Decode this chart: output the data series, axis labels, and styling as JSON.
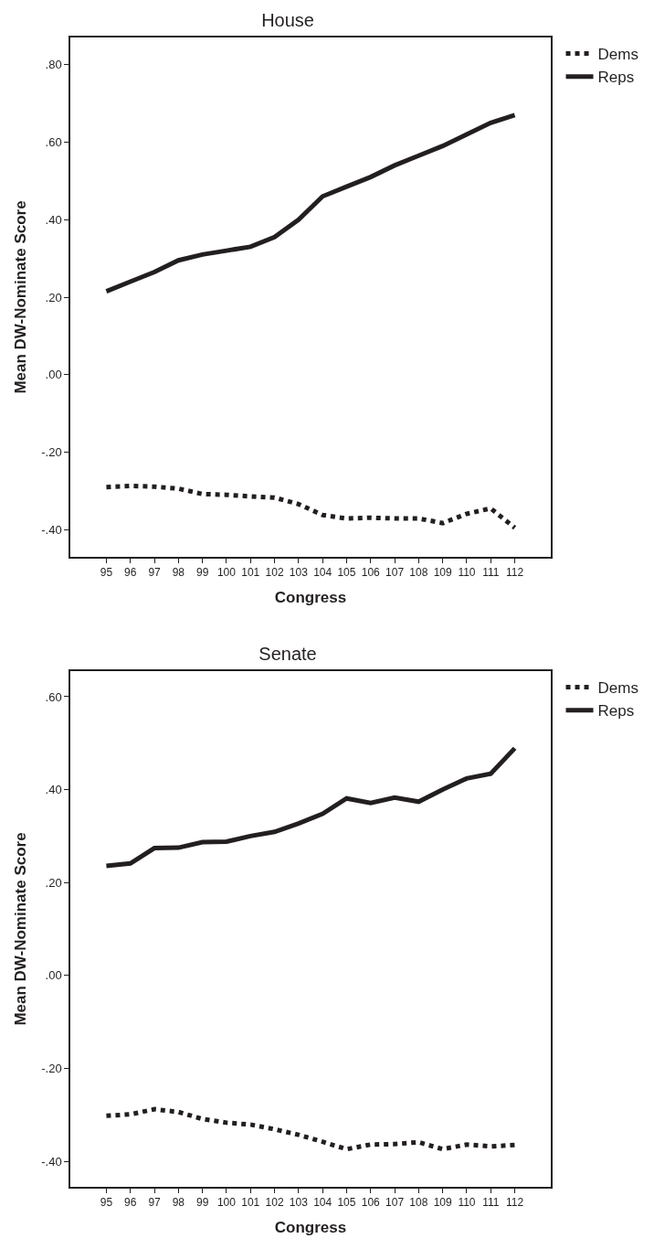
{
  "chart_data": [
    {
      "type": "line",
      "title": "House",
      "xlabel": "Congress",
      "ylabel": "Mean DW-Nominate Score",
      "categories": [
        "95",
        "96",
        "97",
        "98",
        "99",
        "100",
        "101",
        "102",
        "103",
        "104",
        "105",
        "106",
        "107",
        "108",
        "109",
        "110",
        "111",
        "112"
      ],
      "series": [
        {
          "name": "Dems",
          "color": "#231f20",
          "line_style": "dotted",
          "values": [
            -0.29,
            -0.287,
            -0.289,
            -0.294,
            -0.308,
            -0.31,
            -0.314,
            -0.317,
            -0.334,
            -0.362,
            -0.371,
            -0.369,
            -0.371,
            -0.371,
            -0.383,
            -0.359,
            -0.345,
            -0.395
          ]
        },
        {
          "name": "Reps",
          "color": "#231f20",
          "line_style": "solid",
          "values": [
            0.215,
            0.24,
            0.265,
            0.295,
            0.31,
            0.32,
            0.33,
            0.355,
            0.4,
            0.46,
            0.485,
            0.51,
            0.54,
            0.565,
            0.59,
            0.62,
            0.65,
            0.67
          ]
        }
      ],
      "ylim": [
        -0.47,
        0.87
      ],
      "yticks": [
        {
          "value": -0.4,
          "label": "-.40"
        },
        {
          "value": -0.2,
          "label": "-.20"
        },
        {
          "value": 0,
          "label": ".00"
        },
        {
          "value": 0.2,
          "label": ".20"
        },
        {
          "value": 0.4,
          "label": ".40"
        },
        {
          "value": 0.6,
          "label": ".60"
        },
        {
          "value": 0.8,
          "label": ".80"
        }
      ],
      "grid": false,
      "legend": "top right",
      "marker": "none"
    },
    {
      "type": "line",
      "title": "Senate",
      "xlabel": "Congress",
      "ylabel": "Mean DW-Nominate Score",
      "categories": [
        "95",
        "96",
        "97",
        "98",
        "99",
        "100",
        "101",
        "102",
        "103",
        "104",
        "105",
        "106",
        "107",
        "108",
        "109",
        "110",
        "111",
        "112"
      ],
      "series": [
        {
          "name": "Dems",
          "color": "#231f20",
          "line_style": "dotted",
          "values": [
            -0.302,
            -0.299,
            -0.288,
            -0.294,
            -0.309,
            -0.317,
            -0.321,
            -0.331,
            -0.343,
            -0.358,
            -0.374,
            -0.364,
            -0.363,
            -0.359,
            -0.374,
            -0.364,
            -0.368,
            -0.365
          ]
        },
        {
          "name": "Reps",
          "color": "#231f20",
          "line_style": "solid",
          "values": [
            0.236,
            0.241,
            0.274,
            0.275,
            0.287,
            0.288,
            0.3,
            0.309,
            0.327,
            0.348,
            0.381,
            0.371,
            0.383,
            0.374,
            0.4,
            0.424,
            0.434,
            0.489
          ]
        }
      ],
      "ylim": [
        -0.455,
        0.655
      ],
      "yticks": [
        {
          "value": -0.4,
          "label": "-.40"
        },
        {
          "value": -0.2,
          "label": "-.20"
        },
        {
          "value": 0,
          "label": ".00"
        },
        {
          "value": 0.2,
          "label": ".20"
        },
        {
          "value": 0.4,
          "label": ".40"
        },
        {
          "value": 0.6,
          "label": ".60"
        }
      ],
      "grid": false,
      "legend": "top right",
      "marker": "none"
    }
  ]
}
